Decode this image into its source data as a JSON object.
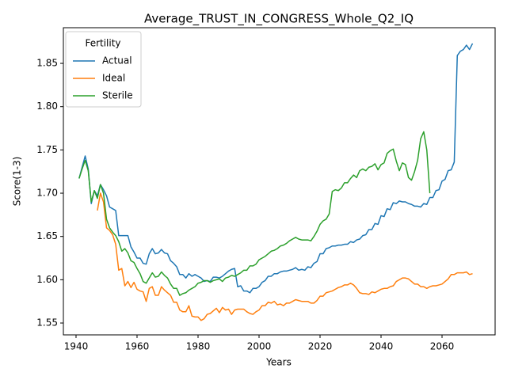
{
  "chart_data": {
    "type": "line",
    "title": "Average_TRUST_IN_CONGRESS_Whole_Q2_IQ",
    "xlabel": "Years",
    "ylabel": "Score(1-3)",
    "legend_title": "Fertility",
    "legend": "upper left",
    "x": [
      1941,
      1942,
      1943,
      1944,
      1945,
      1946,
      1947,
      1948,
      1949,
      1950,
      1951,
      1952,
      1953,
      1954,
      1955,
      1956,
      1957,
      1958,
      1959,
      1960,
      1961,
      1962,
      1963,
      1964,
      1965,
      1966,
      1967,
      1968,
      1969,
      1970,
      1971,
      1972,
      1973,
      1974,
      1975,
      1976,
      1977,
      1978,
      1979,
      1980,
      1981,
      1982,
      1983,
      1984,
      1985,
      1986,
      1987,
      1988,
      1989,
      1990,
      1991,
      1992,
      1993,
      1994,
      1995,
      1996,
      1997,
      1998,
      1999,
      2000,
      2001,
      2002,
      2003,
      2004,
      2005,
      2006,
      2007,
      2008,
      2009,
      2010,
      2011,
      2012,
      2013,
      2014,
      2015,
      2016,
      2017,
      2018,
      2019,
      2020,
      2021,
      2022,
      2023,
      2024,
      2025,
      2026,
      2027,
      2028,
      2029,
      2030,
      2031,
      2032,
      2033,
      2034,
      2035,
      2036,
      2037,
      2038,
      2039,
      2040,
      2041,
      2042,
      2043,
      2044,
      2045,
      2046,
      2047,
      2048,
      2049,
      2050,
      2051,
      2052,
      2053,
      2054,
      2055,
      2056,
      2057,
      2058,
      2059,
      2060,
      2061,
      2062,
      2063,
      2064,
      2065,
      2066,
      2067,
      2068,
      2069,
      2070
    ],
    "series": [
      {
        "name": "Actual",
        "color": "#1f77b4",
        "values": [
          1.717,
          1.73,
          1.743,
          1.728,
          1.688,
          1.703,
          1.697,
          1.71,
          1.704,
          1.697,
          1.684,
          1.682,
          1.68,
          1.651,
          1.651,
          1.651,
          1.651,
          1.638,
          1.632,
          1.625,
          1.625,
          1.619,
          1.618,
          1.63,
          1.636,
          1.63,
          1.631,
          1.635,
          1.631,
          1.63,
          1.622,
          1.619,
          1.615,
          1.606,
          1.606,
          1.602,
          1.607,
          1.604,
          1.606,
          1.604,
          1.602,
          1.598,
          1.599,
          1.598,
          1.603,
          1.603,
          1.602,
          1.604,
          1.607,
          1.61,
          1.612,
          1.613,
          1.592,
          1.593,
          1.587,
          1.587,
          1.585,
          1.59,
          1.59,
          1.592,
          1.597,
          1.599,
          1.604,
          1.604,
          1.607,
          1.607,
          1.609,
          1.61,
          1.61,
          1.611,
          1.612,
          1.614,
          1.611,
          1.612,
          1.611,
          1.615,
          1.614,
          1.619,
          1.621,
          1.63,
          1.63,
          1.636,
          1.637,
          1.639,
          1.639,
          1.64,
          1.64,
          1.641,
          1.641,
          1.644,
          1.643,
          1.646,
          1.647,
          1.651,
          1.652,
          1.658,
          1.658,
          1.665,
          1.664,
          1.674,
          1.673,
          1.682,
          1.681,
          1.689,
          1.688,
          1.691,
          1.69,
          1.69,
          1.688,
          1.687,
          1.685,
          1.685,
          1.684,
          1.688,
          1.687,
          1.695,
          1.695,
          1.703,
          1.704,
          1.714,
          1.716,
          1.726,
          1.727,
          1.736,
          1.859,
          1.864,
          1.866,
          1.871,
          1.866,
          1.873
        ]
      },
      {
        "name": "Ideal",
        "color": "#ff7f0e",
        "values": [
          null,
          null,
          null,
          null,
          null,
          null,
          1.68,
          1.7,
          1.69,
          1.66,
          1.657,
          1.652,
          1.641,
          1.611,
          1.613,
          1.593,
          1.598,
          1.591,
          1.597,
          1.589,
          1.587,
          1.586,
          1.575,
          1.59,
          1.592,
          1.582,
          1.582,
          1.592,
          1.588,
          1.585,
          1.582,
          1.574,
          1.574,
          1.565,
          1.563,
          1.563,
          1.57,
          1.558,
          1.557,
          1.557,
          1.553,
          1.555,
          1.56,
          1.561,
          1.564,
          1.567,
          1.562,
          1.568,
          1.565,
          1.566,
          1.56,
          1.565,
          1.566,
          1.566,
          1.566,
          1.563,
          1.561,
          1.56,
          1.563,
          1.565,
          1.57,
          1.57,
          1.574,
          1.573,
          1.575,
          1.571,
          1.572,
          1.57,
          1.573,
          1.573,
          1.575,
          1.577,
          1.576,
          1.575,
          1.575,
          1.575,
          1.573,
          1.573,
          1.576,
          1.581,
          1.581,
          1.585,
          1.586,
          1.587,
          1.589,
          1.591,
          1.592,
          1.594,
          1.594,
          1.596,
          1.594,
          1.59,
          1.585,
          1.584,
          1.584,
          1.583,
          1.586,
          1.585,
          1.587,
          1.589,
          1.59,
          1.59,
          1.592,
          1.593,
          1.598,
          1.6,
          1.602,
          1.602,
          1.601,
          1.598,
          1.595,
          1.595,
          1.592,
          1.592,
          1.59,
          1.592,
          1.593,
          1.593,
          1.594,
          1.595,
          1.598,
          1.601,
          1.606,
          1.606,
          1.608,
          1.608,
          1.608,
          1.609,
          1.606,
          1.607
        ]
      },
      {
        "name": "Sterile",
        "color": "#2ca02c",
        "values": [
          1.717,
          1.728,
          1.738,
          1.726,
          1.69,
          1.703,
          1.694,
          1.71,
          1.7,
          1.67,
          1.66,
          1.655,
          1.651,
          1.644,
          1.633,
          1.636,
          1.631,
          1.622,
          1.62,
          1.613,
          1.607,
          1.598,
          1.596,
          1.602,
          1.608,
          1.603,
          1.604,
          1.609,
          1.605,
          1.602,
          1.595,
          1.59,
          1.59,
          1.582,
          1.584,
          1.585,
          1.588,
          1.59,
          1.592,
          1.596,
          1.597,
          1.599,
          1.599,
          1.597,
          1.599,
          1.6,
          1.601,
          1.598,
          1.602,
          1.603,
          1.605,
          1.604,
          1.606,
          1.608,
          1.611,
          1.611,
          1.616,
          1.616,
          1.618,
          1.623,
          1.625,
          1.627,
          1.63,
          1.633,
          1.634,
          1.636,
          1.639,
          1.64,
          1.642,
          1.645,
          1.647,
          1.649,
          1.647,
          1.646,
          1.646,
          1.646,
          1.645,
          1.65,
          1.656,
          1.664,
          1.668,
          1.67,
          1.676,
          1.702,
          1.704,
          1.703,
          1.706,
          1.712,
          1.712,
          1.717,
          1.721,
          1.718,
          1.726,
          1.728,
          1.726,
          1.73,
          1.731,
          1.734,
          1.727,
          1.733,
          1.735,
          1.746,
          1.749,
          1.751,
          1.737,
          1.726,
          1.735,
          1.733,
          1.718,
          1.715,
          1.725,
          1.738,
          1.763,
          1.771,
          1.75,
          1.7,
          null,
          null,
          null,
          null,
          null,
          null,
          null,
          null,
          null,
          null,
          null,
          null,
          null,
          null
        ]
      }
    ],
    "xlim": [
      1935.85,
      2077.4
    ],
    "xticks": [
      1940,
      1960,
      1980,
      2000,
      2020,
      2040,
      2060
    ],
    "ylim": [
      1.5363,
      1.8912
    ],
    "yticks": [
      1.55,
      {
        "value": 1.6,
        "label": "1.60"
      },
      1.65,
      {
        "value": 1.7,
        "label": "1.70"
      },
      1.75,
      {
        "value": 1.8,
        "label": "1.80"
      },
      1.85
    ]
  }
}
